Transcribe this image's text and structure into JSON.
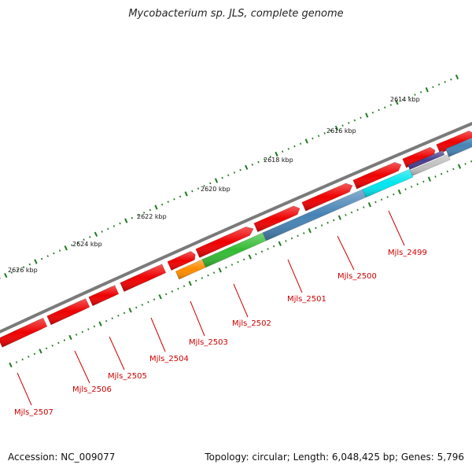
{
  "header": {
    "title": "Mycobacterium sp. JLS, complete genome"
  },
  "footer": {
    "accession": "Accession: NC_009077",
    "summary": "Topology: circular; Length: 6,048,425 bp; Genes: 5,796"
  },
  "scale_labels": [
    "2614 kbp",
    "2616 kbp",
    "2618 kbp",
    "2620 kbp",
    "2622 kbp",
    "2624 kbp",
    "2626 kbp"
  ],
  "forward_genes": [
    {
      "name": "fwd-1",
      "color": "#ee0000"
    },
    {
      "name": "fwd-2",
      "color": "#ee0000"
    },
    {
      "name": "fwd-3",
      "color": "#ee0000"
    },
    {
      "name": "fwd-4",
      "color": "#ee0000"
    },
    {
      "name": "fwd-5",
      "color": "#ee0000"
    },
    {
      "name": "fwd-6",
      "color": "#ee0000"
    },
    {
      "name": "fwd-7",
      "color": "#ee0000"
    },
    {
      "name": "fwd-8",
      "color": "#ee0000"
    },
    {
      "name": "fwd-9",
      "color": "#ee0000"
    },
    {
      "name": "fwd-10",
      "color": "#ee0000"
    },
    {
      "name": "fwd-11",
      "color": "#ee0000"
    },
    {
      "name": "fwd-12",
      "color": "#ee0000"
    }
  ],
  "inner_genes": [
    {
      "color": "#ee0000"
    },
    {
      "color": "#ee0000"
    },
    {
      "color": "#ee0000"
    },
    {
      "color": "#ee0000"
    },
    {
      "color": "#ff8c00"
    },
    {
      "color": "#33bb33"
    },
    {
      "color": "#4682b4"
    },
    {
      "color": "#00e5ee"
    },
    {
      "color": "#c0c0c0"
    },
    {
      "color": "#4682b4"
    },
    {
      "color": "#483d8b"
    }
  ],
  "gene_labels": [
    "Mjls_2499",
    "Mjls_2500",
    "Mjls_2501",
    "Mjls_2502",
    "Mjls_2503",
    "Mjls_2504",
    "Mjls_2505",
    "Mjls_2506",
    "Mjls_2507"
  ],
  "colors": {
    "backbone": "#7a7a7a",
    "tick": "#1f7a1f",
    "label": "#cc0000",
    "scale_text": "#111111"
  }
}
